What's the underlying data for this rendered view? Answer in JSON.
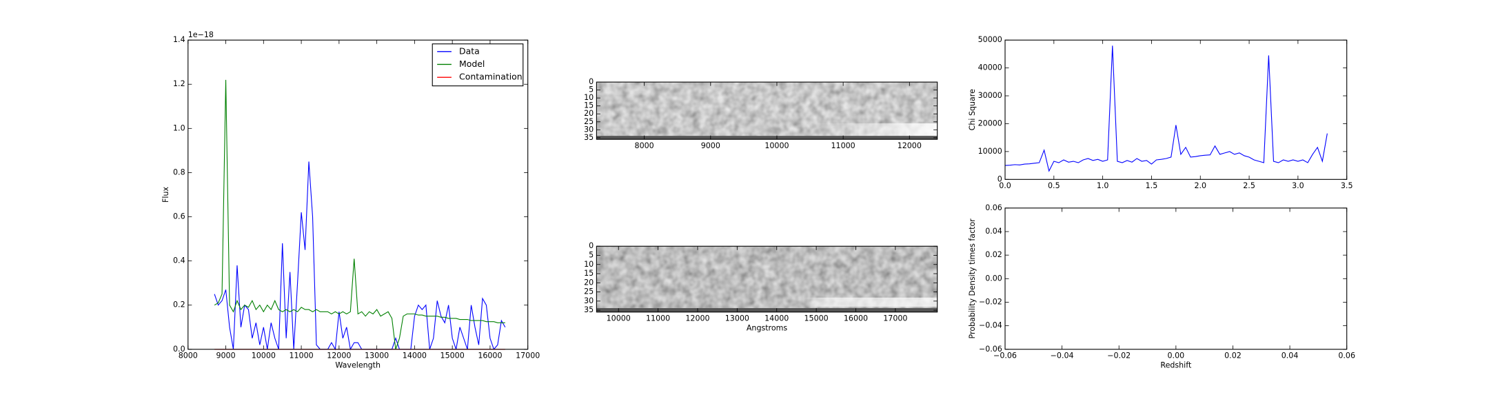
{
  "chart_data": [
    {
      "type": "line",
      "xlabel": "Wavelength",
      "ylabel": "Flux",
      "annotations": [
        "1e−18"
      ],
      "legend": "upper right",
      "x": [
        8700,
        8800,
        8900,
        9000,
        9100,
        9200,
        9300,
        9400,
        9500,
        9600,
        9700,
        9800,
        9900,
        10000,
        10100,
        10200,
        10300,
        10400,
        10500,
        10600,
        10700,
        10800,
        10900,
        11000,
        11100,
        11200,
        11300,
        11400,
        11500,
        11600,
        11700,
        11800,
        11900,
        12000,
        12100,
        12200,
        12300,
        12400,
        12500,
        12600,
        12700,
        12800,
        12900,
        13000,
        13100,
        13200,
        13300,
        13400,
        13500,
        13600,
        13700,
        13800,
        13900,
        14000,
        14100,
        14200,
        14300,
        14400,
        14500,
        14600,
        14700,
        14800,
        14900,
        15000,
        15100,
        15200,
        15300,
        15400,
        15500,
        15600,
        15700,
        15800,
        15900,
        16000,
        16100,
        16200,
        16300,
        16400
      ],
      "series": [
        {
          "name": "Data",
          "color": "#0000ff",
          "values": [
            0.25,
            0.2,
            0.22,
            0.27,
            0.1,
            0,
            0.38,
            0.1,
            0.2,
            0.18,
            0.05,
            0.12,
            0.02,
            0.1,
            0,
            0.12,
            0.05,
            0,
            0.48,
            0.05,
            0.35,
            0,
            0.3,
            0.62,
            0.45,
            0.85,
            0.6,
            0.02,
            0,
            0,
            0,
            0.03,
            0,
            0.17,
            0.05,
            0.1,
            0,
            0.03,
            0.03,
            0,
            0,
            0,
            0,
            0,
            0,
            0,
            0,
            0,
            0.05,
            0,
            0,
            0,
            0,
            0.15,
            0.2,
            0.18,
            0.2,
            0,
            0.05,
            0.22,
            0.15,
            0.12,
            0.2,
            0.05,
            0,
            0.1,
            0.05,
            0,
            0.2,
            0.1,
            0.02,
            0.23,
            0.2,
            0.05,
            0,
            0.02,
            0.13,
            0.1
          ]
        },
        {
          "name": "Model",
          "color": "#008000",
          "values": [
            0.2,
            0.21,
            0.25,
            1.22,
            0.2,
            0.17,
            0.22,
            0.18,
            0.2,
            0.19,
            0.22,
            0.18,
            0.2,
            0.17,
            0.2,
            0.18,
            0.22,
            0.18,
            0.17,
            0.18,
            0.17,
            0.18,
            0.17,
            0.19,
            0.18,
            0.18,
            0.17,
            0.18,
            0.17,
            0.17,
            0.17,
            0.16,
            0.17,
            0.16,
            0.17,
            0.16,
            0.17,
            0.41,
            0.16,
            0.17,
            0.15,
            0.17,
            0.16,
            0.18,
            0.15,
            0.16,
            0.17,
            0.14,
            0,
            0.05,
            0.15,
            0.16,
            0.16,
            0.16,
            0.155,
            0.155,
            0.15,
            0.15,
            0.15,
            0.15,
            0.145,
            0.145,
            0.14,
            0.14,
            0.14,
            0.135,
            0.135,
            0.135,
            0.13,
            0.13,
            0.13,
            0.13,
            0.125,
            0.125,
            0.125,
            0.12,
            0.12,
            0.12
          ]
        },
        {
          "name": "Contamination",
          "color": "#ff0000",
          "values": [
            0,
            0,
            0,
            0,
            0,
            0,
            0,
            0,
            0,
            0,
            0,
            0,
            0,
            0,
            0,
            0,
            0,
            0,
            0,
            0,
            0,
            0,
            0,
            0,
            0,
            0,
            0,
            0,
            0,
            0,
            0,
            0,
            0,
            0,
            0,
            0,
            0,
            0,
            0,
            0,
            0,
            0,
            0,
            0,
            0,
            0,
            0,
            0,
            0,
            0,
            0,
            0,
            0,
            0,
            0,
            0,
            0,
            0,
            0,
            0,
            0,
            0,
            0,
            0,
            0,
            0,
            0,
            0,
            0,
            0,
            0,
            0,
            0,
            0,
            0,
            0,
            0,
            0
          ]
        }
      ],
      "xlim": [
        8000,
        17000
      ],
      "xticks": [
        8000,
        9000,
        10000,
        11000,
        12000,
        13000,
        14000,
        15000,
        16000,
        17000
      ],
      "ylim": [
        0,
        1.4
      ],
      "yticks": [
        {
          "value": 0,
          "label": "0.0"
        },
        {
          "value": 0.2,
          "label": "0.2"
        },
        {
          "value": 0.4,
          "label": "0.4"
        },
        {
          "value": 0.6,
          "label": "0.6"
        },
        {
          "value": 0.8,
          "label": "0.8"
        },
        {
          "value": 1,
          "label": "1.0"
        },
        {
          "value": 1.2,
          "label": "1.2"
        },
        {
          "value": 1.4,
          "label": "1.4"
        }
      ]
    },
    {
      "type": "image",
      "xlim": [
        7280,
        12420
      ],
      "xticks": [
        8000,
        9000,
        10000,
        11000,
        12000
      ],
      "ylim": [
        36,
        0
      ],
      "yticks": [
        0,
        5,
        10,
        15,
        20,
        25,
        30,
        35
      ]
    },
    {
      "type": "image",
      "xlabel": "Angstroms",
      "xlim": [
        9445,
        18060
      ],
      "xticks": [
        10000,
        11000,
        12000,
        13000,
        14000,
        15000,
        16000,
        17000
      ],
      "ylim": [
        36,
        0
      ],
      "yticks": [
        0,
        5,
        10,
        15,
        20,
        25,
        30,
        35
      ]
    },
    {
      "type": "line",
      "ylabel": "Chi Square",
      "x": [
        0,
        0.05,
        0.1,
        0.15,
        0.2,
        0.25,
        0.3,
        0.35,
        0.4,
        0.45,
        0.5,
        0.55,
        0.6,
        0.65,
        0.7,
        0.75,
        0.8,
        0.85,
        0.9,
        0.95,
        1,
        1.05,
        1.1,
        1.15,
        1.2,
        1.25,
        1.3,
        1.35,
        1.4,
        1.45,
        1.5,
        1.55,
        1.6,
        1.65,
        1.7,
        1.75,
        1.8,
        1.85,
        1.9,
        1.95,
        2,
        2.05,
        2.1,
        2.15,
        2.2,
        2.25,
        2.3,
        2.35,
        2.4,
        2.45,
        2.5,
        2.55,
        2.6,
        2.65,
        2.7,
        2.75,
        2.8,
        2.85,
        2.9,
        2.95,
        3,
        3.05,
        3.1,
        3.15,
        3.2,
        3.25,
        3.3
      ],
      "series": [
        {
          "color": "#0000ff",
          "values": [
            5000,
            5100,
            5300,
            5200,
            5500,
            5600,
            5800,
            6000,
            10500,
            3000,
            6500,
            6000,
            7000,
            6200,
            6500,
            6000,
            7000,
            7500,
            6800,
            7200,
            6500,
            7000,
            48000,
            6500,
            6000,
            6800,
            6200,
            7500,
            6500,
            6800,
            5500,
            7000,
            7200,
            7500,
            8000,
            19500,
            9000,
            11500,
            8000,
            8200,
            8500,
            8700,
            8800,
            12000,
            9000,
            9500,
            10000,
            9000,
            9500,
            8500,
            8000,
            7000,
            6500,
            6000,
            44500,
            6500,
            6000,
            7000,
            6500,
            7000,
            6500,
            7000,
            6000,
            9000,
            11500,
            6500,
            16500
          ]
        }
      ],
      "xlim": [
        0,
        3.5
      ],
      "xticks": [
        {
          "value": 0,
          "label": "0.0"
        },
        {
          "value": 0.5,
          "label": "0.5"
        },
        {
          "value": 1,
          "label": "1.0"
        },
        {
          "value": 1.5,
          "label": "1.5"
        },
        {
          "value": 2,
          "label": "2.0"
        },
        {
          "value": 2.5,
          "label": "2.5"
        },
        {
          "value": 3,
          "label": "3.0"
        },
        {
          "value": 3.5,
          "label": "3.5"
        }
      ],
      "ylim": [
        0,
        50000
      ],
      "yticks": [
        0,
        10000,
        20000,
        30000,
        40000,
        50000
      ]
    },
    {
      "type": "line",
      "xlabel": "Redshift",
      "ylabel": "Probability Density times factor",
      "xlim": [
        -0.06,
        0.06
      ],
      "xticks": [
        {
          "value": -0.06,
          "label": "−0.06"
        },
        {
          "value": -0.04,
          "label": "−0.04"
        },
        {
          "value": -0.02,
          "label": "−0.02"
        },
        {
          "value": 0,
          "label": "0.00"
        },
        {
          "value": 0.02,
          "label": "0.02"
        },
        {
          "value": 0.04,
          "label": "0.04"
        },
        {
          "value": 0.06,
          "label": "0.06"
        }
      ],
      "ylim": [
        -0.06,
        0.06
      ],
      "yticks": [
        {
          "value": -0.06,
          "label": "−0.06"
        },
        {
          "value": -0.04,
          "label": "−0.04"
        },
        {
          "value": -0.02,
          "label": "−0.02"
        },
        {
          "value": 0,
          "label": "0.00"
        },
        {
          "value": 0.02,
          "label": "0.02"
        },
        {
          "value": 0.04,
          "label": "0.04"
        },
        {
          "value": 0.06,
          "label": "0.06"
        }
      ]
    }
  ]
}
